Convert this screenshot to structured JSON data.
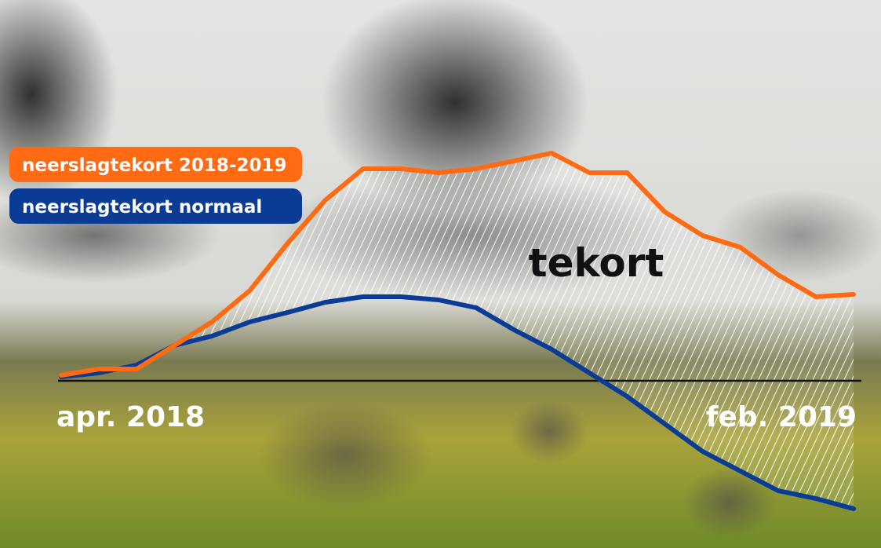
{
  "chart_data": {
    "type": "line",
    "annotation": "tekort",
    "categories": [
      "apr. 2018",
      null,
      null,
      null,
      null,
      null,
      null,
      null,
      null,
      null,
      null,
      null,
      null,
      null,
      null,
      null,
      null,
      null,
      null,
      null,
      null,
      "feb. 2019"
    ],
    "series": [
      {
        "name": "neerslagtekort 2018-2019",
        "color": "#ff6a13",
        "values": [
          7,
          15,
          15,
          45,
          75,
          115,
          175,
          230,
          270,
          270,
          265,
          270,
          280,
          290,
          265,
          265,
          215,
          185,
          170,
          135,
          107,
          110
        ]
      },
      {
        "name": "neerslagtekort normaal",
        "color": "#0a3c96",
        "values": [
          5,
          10,
          20,
          45,
          57,
          75,
          87,
          100,
          107,
          107,
          103,
          93,
          65,
          40,
          10,
          -20,
          -55,
          -90,
          -115,
          -140,
          -150,
          -163
        ]
      }
    ],
    "ylim": [
      -170,
      300
    ]
  }
}
